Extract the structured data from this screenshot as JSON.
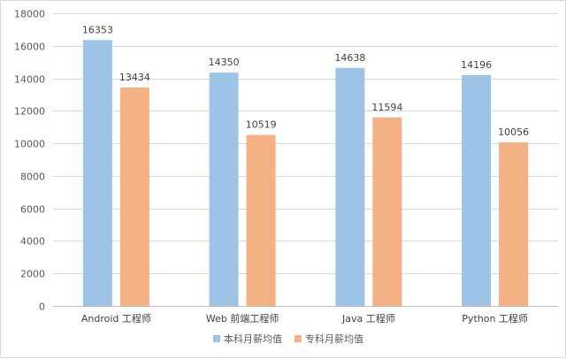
{
  "chart_data": {
    "type": "bar",
    "categories": [
      "Android 工程师",
      "Web 前端工程师",
      "Java 工程师",
      "Python 工程师"
    ],
    "series": [
      {
        "name": "本科月薪均值",
        "values": [
          16353,
          14350,
          14638,
          14196
        ],
        "color": "#9dc3e6"
      },
      {
        "name": "专科月薪均值",
        "values": [
          13434,
          10519,
          11594,
          10056
        ],
        "color": "#f4b183"
      }
    ],
    "ylim": [
      0,
      18000
    ],
    "yticks": [
      0,
      2000,
      4000,
      6000,
      8000,
      10000,
      12000,
      14000,
      16000,
      18000
    ],
    "grid": true,
    "legend_position": "bottom",
    "data_labels": true
  }
}
